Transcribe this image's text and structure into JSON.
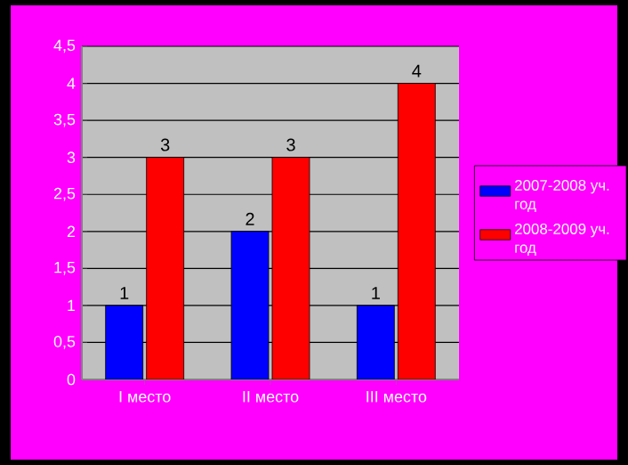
{
  "chart_data": {
    "type": "bar",
    "categories": [
      "I место",
      "II место",
      "III место"
    ],
    "series": [
      {
        "name": "2007-2008 уч. год",
        "color": "#0000ff",
        "values": [
          1,
          2,
          1
        ]
      },
      {
        "name": "2008-2009 уч. год",
        "color": "#ff0000",
        "values": [
          3,
          3,
          4
        ]
      }
    ],
    "ylim": [
      0,
      4.5
    ],
    "yticks": [
      0,
      {
        "value": 0.5,
        "label": "0,5"
      },
      1,
      {
        "value": 1.5,
        "label": "1,5"
      },
      2,
      {
        "value": 2.5,
        "label": "2,5"
      },
      3,
      {
        "value": 3.5,
        "label": "3,5"
      },
      4,
      {
        "value": 4.5,
        "label": "4,5"
      }
    ],
    "grid": "y",
    "legend": "right",
    "data_labels": true
  }
}
